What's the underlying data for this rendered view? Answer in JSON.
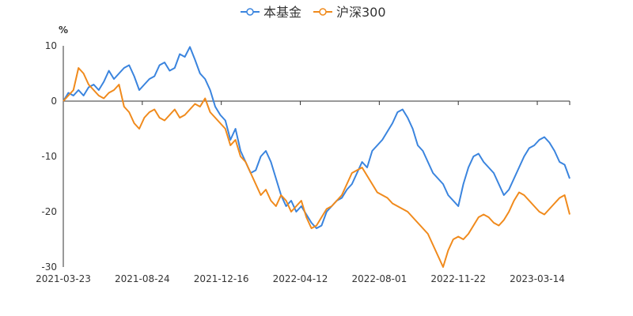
{
  "chart_data": {
    "type": "line",
    "ylabel": "%",
    "ylim": [
      -30,
      10
    ],
    "yticks": [
      10,
      0,
      -10,
      -20,
      -30
    ],
    "x_tick_labels": [
      "2021-03-23",
      "2021-08-24",
      "2021-12-16",
      "2022-04-12",
      "2022-08-01",
      "2022-11-22",
      "2023-03-14"
    ],
    "x_range_index": [
      0,
      100
    ],
    "x_tick_index": [
      0,
      15.6,
      31.2,
      46.8,
      62.4,
      78.0,
      93.6
    ],
    "legend_position": "top-center",
    "series": [
      {
        "name": "本基金",
        "color": "#3a84de",
        "x": [
          0,
          1,
          2,
          3,
          4,
          5,
          6,
          7,
          8,
          9,
          10,
          11,
          12,
          13,
          14,
          15,
          16,
          17,
          18,
          19,
          20,
          21,
          22,
          23,
          24,
          25,
          26,
          27,
          28,
          29,
          30,
          31,
          32,
          33,
          34,
          35,
          36,
          37,
          38,
          39,
          40,
          41,
          42,
          43,
          44,
          45,
          46,
          47,
          48,
          49,
          50,
          51,
          52,
          53,
          54,
          55,
          56,
          57,
          58,
          59,
          60,
          61,
          62,
          63,
          64,
          65,
          66,
          67,
          68,
          69,
          70,
          71,
          72,
          73,
          74,
          75,
          76,
          77,
          78,
          79,
          80,
          81,
          82,
          83,
          84,
          85,
          86,
          87,
          88,
          89,
          90,
          91,
          92,
          93,
          94,
          95,
          96,
          97,
          98,
          99,
          100
        ],
        "values": [
          0,
          1.5,
          1.0,
          2.0,
          1.0,
          2.5,
          3.0,
          2.0,
          3.5,
          5.5,
          4.0,
          5.0,
          6.0,
          6.5,
          4.5,
          2.0,
          3.0,
          4.0,
          4.5,
          6.5,
          7.0,
          5.5,
          6.0,
          8.5,
          8.0,
          9.8,
          7.5,
          5.0,
          4.0,
          2.0,
          -1.0,
          -2.5,
          -3.5,
          -7.0,
          -5.0,
          -9.0,
          -11.0,
          -13.0,
          -12.5,
          -10.0,
          -9.0,
          -11.0,
          -14.0,
          -17.0,
          -19.0,
          -18.0,
          -20.0,
          -19.0,
          -20.5,
          -22.0,
          -23.0,
          -22.5,
          -20.0,
          -19.0,
          -18.0,
          -17.5,
          -16.0,
          -15.0,
          -13.0,
          -11.0,
          -12.0,
          -9.0,
          -8.0,
          -7.0,
          -5.5,
          -4.0,
          -2.0,
          -1.5,
          -3.0,
          -5.0,
          -8.0,
          -9.0,
          -11.0,
          -13.0,
          -14.0,
          -15.0,
          -17.0,
          -18.0,
          -19.0,
          -15.0,
          -12.0,
          -10.0,
          -9.5,
          -11.0,
          -12.0,
          -13.0,
          -15.0,
          -17.0,
          -16.0,
          -14.0,
          -12.0,
          -10.0,
          -8.5,
          -8.0,
          -7.0,
          -6.5,
          -7.5,
          -9.0,
          -11.0,
          -11.5,
          -14.0
        ]
      },
      {
        "name": "沪深300",
        "color": "#f08a1c",
        "x": [
          0,
          1,
          2,
          3,
          4,
          5,
          6,
          7,
          8,
          9,
          10,
          11,
          12,
          13,
          14,
          15,
          16,
          17,
          18,
          19,
          20,
          21,
          22,
          23,
          24,
          25,
          26,
          27,
          28,
          29,
          30,
          31,
          32,
          33,
          34,
          35,
          36,
          37,
          38,
          39,
          40,
          41,
          42,
          43,
          44,
          45,
          46,
          47,
          48,
          49,
          50,
          51,
          52,
          53,
          54,
          55,
          56,
          57,
          58,
          59,
          60,
          61,
          62,
          63,
          64,
          65,
          66,
          67,
          68,
          69,
          70,
          71,
          72,
          73,
          74,
          75,
          76,
          77,
          78,
          79,
          80,
          81,
          82,
          83,
          84,
          85,
          86,
          87,
          88,
          89,
          90,
          91,
          92,
          93,
          94,
          95,
          96,
          97,
          98,
          99,
          100
        ],
        "values": [
          0,
          1.0,
          2.0,
          6.0,
          5.0,
          3.0,
          2.0,
          1.0,
          0.5,
          1.5,
          2.0,
          3.0,
          -1.0,
          -2.0,
          -4.0,
          -5.0,
          -3.0,
          -2.0,
          -1.5,
          -3.0,
          -3.5,
          -2.5,
          -1.5,
          -3.0,
          -2.5,
          -1.5,
          -0.5,
          -1.0,
          0.5,
          -2.0,
          -3.0,
          -4.0,
          -5.0,
          -8.0,
          -7.0,
          -10.0,
          -11.0,
          -13.0,
          -15.0,
          -17.0,
          -16.0,
          -18.0,
          -19.0,
          -17.0,
          -18.0,
          -20.0,
          -19.0,
          -18.0,
          -21.0,
          -23.0,
          -22.5,
          -21.0,
          -19.5,
          -19.0,
          -18.0,
          -17.0,
          -15.0,
          -13.0,
          -12.5,
          -12.0,
          -13.5,
          -15.0,
          -16.5,
          -17.0,
          -17.5,
          -18.5,
          -19.0,
          -19.5,
          -20.0,
          -21.0,
          -22.0,
          -23.0,
          -24.0,
          -26.0,
          -28.0,
          -30.0,
          -27.0,
          -25.0,
          -24.5,
          -25.0,
          -24.0,
          -22.5,
          -21.0,
          -20.5,
          -21.0,
          -22.0,
          -22.5,
          -21.5,
          -20.0,
          -18.0,
          -16.5,
          -17.0,
          -18.0,
          -19.0,
          -20.0,
          -20.5,
          -19.5,
          -18.5,
          -17.5,
          -17.0,
          -20.5
        ]
      }
    ]
  }
}
